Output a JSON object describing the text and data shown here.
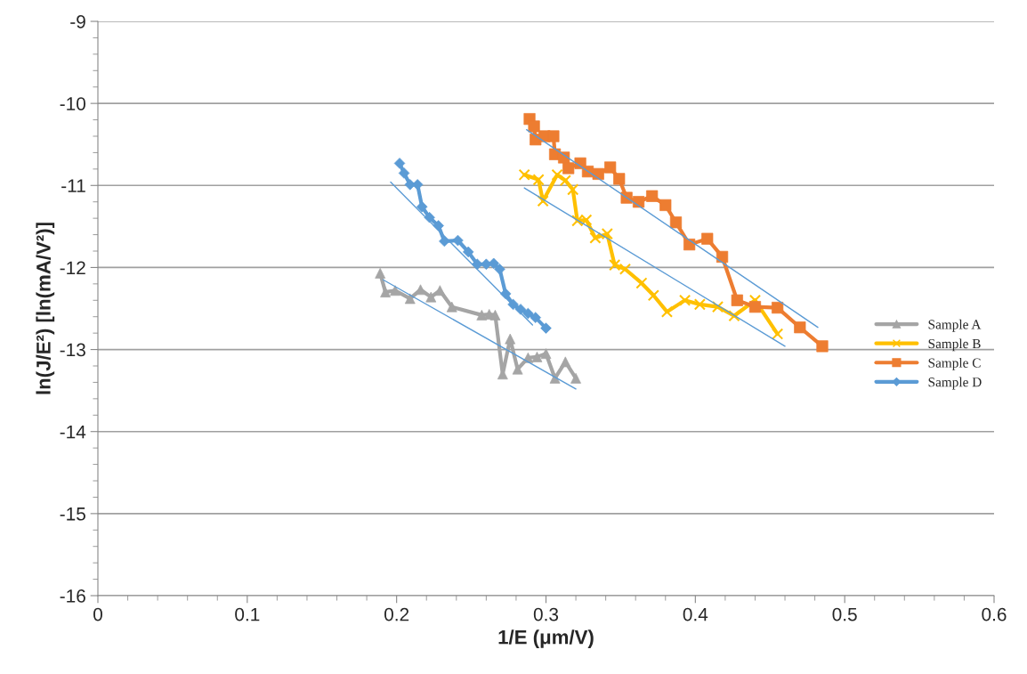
{
  "chart_data": {
    "type": "line",
    "xlabel": "1/E (μm/V)",
    "ylabel": "ln(J/E²) [ln(mA/V²)]",
    "xlim": [
      0,
      0.6
    ],
    "xticks": [
      0,
      0.1,
      0.2,
      0.3,
      0.4,
      0.5,
      0.6
    ],
    "ylim": [
      -16,
      -9
    ],
    "yticks": [
      -16,
      -15,
      -14,
      -13,
      -12,
      -11,
      -10,
      -9
    ],
    "grid": "y",
    "legend": "right",
    "series": [
      {
        "name": "Sample A",
        "color": "#a5a5a5",
        "marker": "triangle",
        "x": [
          0.189,
          0.1925,
          0.199,
          0.209,
          0.216,
          0.223,
          0.229,
          0.237,
          0.257,
          0.262,
          0.266,
          0.271,
          0.276,
          0.281,
          0.288,
          0.294,
          0.3,
          0.306,
          0.313,
          0.32
        ],
        "values": [
          -12.07,
          -12.3,
          -12.28,
          -12.38,
          -12.27,
          -12.36,
          -12.28,
          -12.48,
          -12.58,
          -12.57,
          -12.58,
          -13.3,
          -12.87,
          -13.24,
          -13.1,
          -13.09,
          -13.05,
          -13.35,
          -13.15,
          -13.35
        ]
      },
      {
        "name": "Sample B",
        "color": "#ffc000",
        "marker": "cross",
        "x": [
          0.2855,
          0.295,
          0.298,
          0.3075,
          0.313,
          0.318,
          0.321,
          0.327,
          0.333,
          0.341,
          0.346,
          0.353,
          0.364,
          0.372,
          0.381,
          0.393,
          0.403,
          0.415,
          0.426,
          0.44,
          0.455
        ],
        "values": [
          -10.87,
          -10.93,
          -11.19,
          -10.87,
          -10.94,
          -11.05,
          -11.43,
          -11.42,
          -11.64,
          -11.59,
          -11.97,
          -12.02,
          -12.19,
          -12.34,
          -12.54,
          -12.4,
          -12.45,
          -12.48,
          -12.59,
          -12.4,
          -12.81
        ]
      },
      {
        "name": "Sample C",
        "color": "#ed7d31",
        "marker": "square",
        "x": [
          0.289,
          0.292,
          0.293,
          0.299,
          0.305,
          0.306,
          0.312,
          0.315,
          0.323,
          0.328,
          0.335,
          0.343,
          0.349,
          0.354,
          0.362,
          0.371,
          0.38,
          0.387,
          0.396,
          0.408,
          0.418,
          0.428,
          0.44,
          0.455,
          0.47,
          0.485
        ],
        "values": [
          -10.19,
          -10.28,
          -10.44,
          -10.4,
          -10.4,
          -10.62,
          -10.66,
          -10.79,
          -10.73,
          -10.83,
          -10.86,
          -10.78,
          -10.92,
          -11.15,
          -11.2,
          -11.13,
          -11.24,
          -11.45,
          -11.72,
          -11.65,
          -11.87,
          -12.4,
          -12.48,
          -12.49,
          -12.73,
          -12.96
        ]
      },
      {
        "name": "Sample D",
        "color": "#5b9bd5",
        "marker": "diamond",
        "x": [
          0.202,
          0.205,
          0.209,
          0.214,
          0.217,
          0.222,
          0.228,
          0.232,
          0.241,
          0.248,
          0.254,
          0.26,
          0.265,
          0.269,
          0.273,
          0.278,
          0.283,
          0.288,
          0.293,
          0.3
        ],
        "values": [
          -10.73,
          -10.85,
          -10.99,
          -10.99,
          -11.26,
          -11.39,
          -11.49,
          -11.68,
          -11.67,
          -11.81,
          -11.96,
          -11.96,
          -11.95,
          -12.02,
          -12.32,
          -12.45,
          -12.51,
          -12.56,
          -12.61,
          -12.74
        ]
      },
      {
        "color": "#5b9bd5",
        "marker": "none",
        "x": [
          0.191,
          0.32
        ],
        "values": [
          -12.15,
          -13.48
        ]
      },
      {
        "color": "#5b9bd5",
        "marker": "none",
        "x": [
          0.196,
          0.291
        ],
        "values": [
          -10.96,
          -12.7
        ]
      },
      {
        "color": "#5b9bd5",
        "marker": "none",
        "x": [
          0.2855,
          0.46
        ],
        "values": [
          -11.03,
          -12.96
        ]
      },
      {
        "color": "#5b9bd5",
        "marker": "none",
        "x": [
          0.287,
          0.482
        ],
        "values": [
          -10.32,
          -12.73
        ]
      }
    ]
  }
}
